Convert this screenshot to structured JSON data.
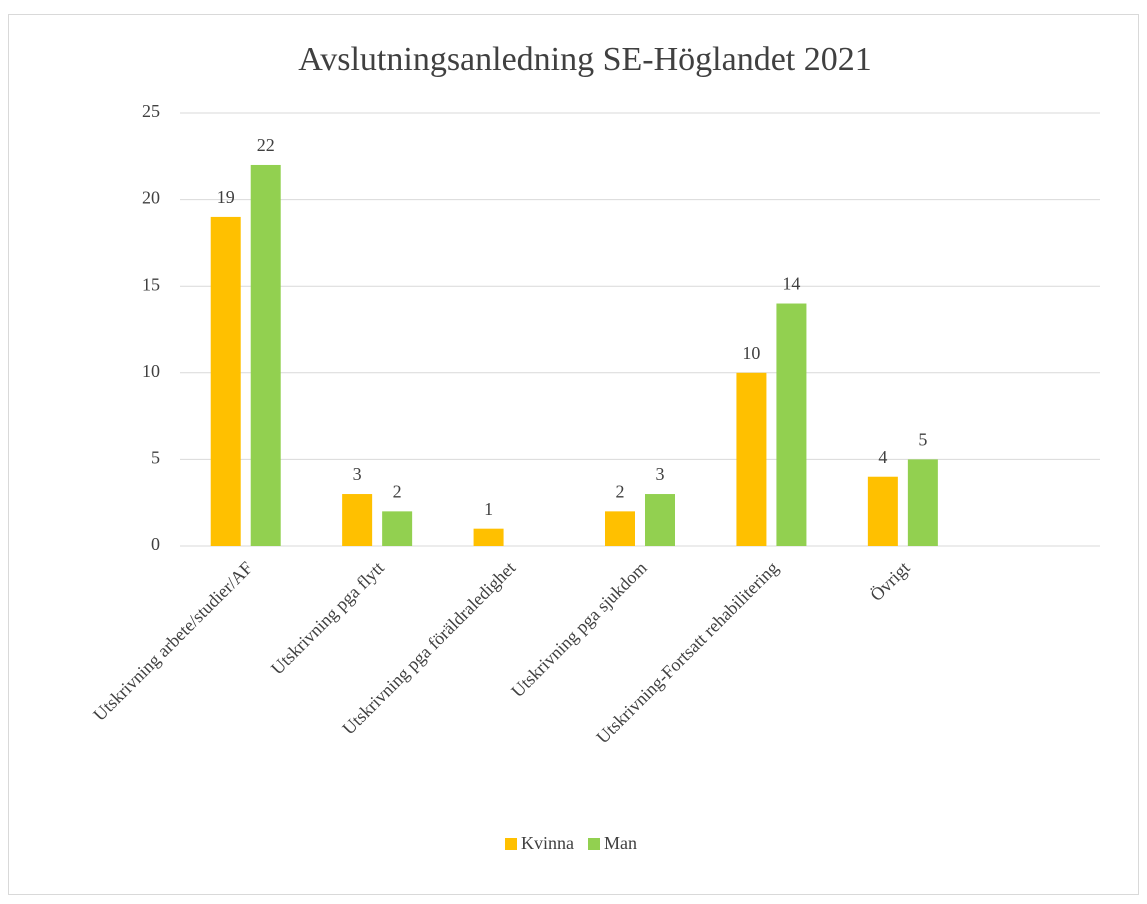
{
  "chart_data": {
    "type": "bar",
    "title": "Avslutningsanledning SE-Höglandet 2021",
    "categories": [
      "Utskrivning arbete/studier/AF",
      "Utskrivning pga flytt",
      "Utskrivning pga föräldraledighet",
      "Utskrivning pga sjukdom",
      "Utskrivning-Fortsatt rehabilitering",
      "Övrigt",
      null
    ],
    "series": [
      {
        "name": "Kvinna",
        "color": "#ffc000",
        "values": [
          19,
          3,
          1,
          2,
          10,
          4,
          null
        ]
      },
      {
        "name": "Man",
        "color": "#92d050",
        "values": [
          22,
          2,
          null,
          3,
          14,
          5,
          null
        ]
      }
    ],
    "ylim": [
      0,
      25
    ],
    "yticks": [
      0,
      5,
      10,
      15,
      20,
      25
    ],
    "grid": true,
    "legend": "bottom"
  }
}
